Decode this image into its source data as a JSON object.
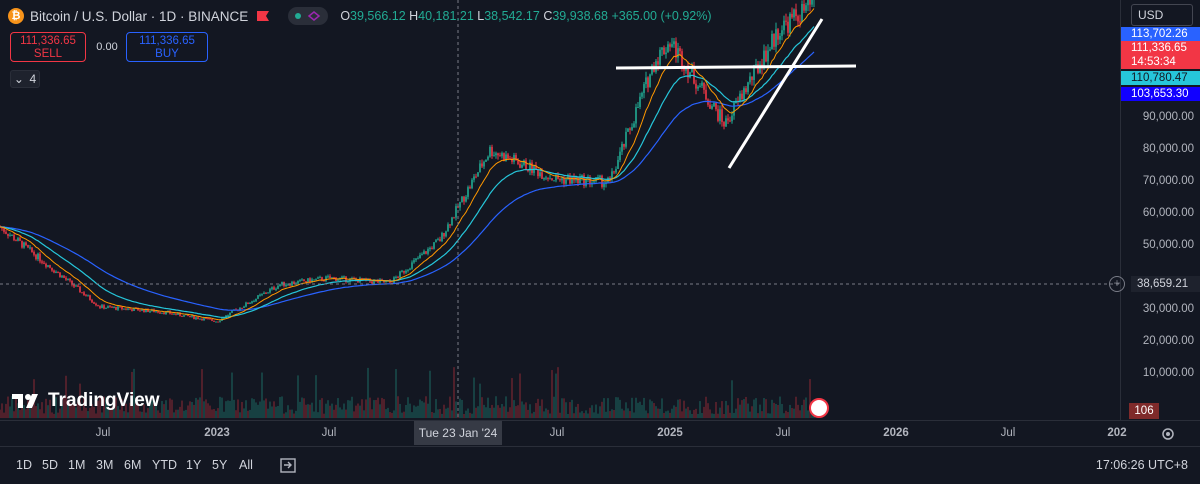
{
  "legend": {
    "title": "Bitcoin / U.S. Dollar · 1D · BINANCE",
    "open_label": "O",
    "open": "39,566.12",
    "high_label": "H",
    "high": "40,181.21",
    "low_label": "L",
    "low": "38,542.17",
    "close_label": "C",
    "close": "39,938.68",
    "change": "+365.00 (+0.92%)"
  },
  "trade": {
    "sell_price": "111,336.65",
    "sell_label": "SELL",
    "spread": "0.00",
    "buy_price": "111,336.65",
    "buy_label": "BUY",
    "indicators_count": "4"
  },
  "currency": "USD",
  "price_scale": {
    "labels": [
      "90,000.00",
      "80,000.00",
      "70,000.00",
      "60,000.00",
      "50,000.00",
      "40,000.00",
      "30,000.00",
      "20,000.00",
      "10,000.00"
    ],
    "tag_top": "113,702.26",
    "tag_last": "111,336.65",
    "tag_countdown": "14:53:34",
    "tag_ema_fast": "110,780.47",
    "tag_ema_slow": "103,653.30",
    "crosshair_price": "38,659.21",
    "volume_value": "106"
  },
  "time_scale": {
    "labels": [
      "Jul",
      "2023",
      "Jul",
      "Jul",
      "2025",
      "Jul",
      "2026",
      "Jul",
      "202"
    ],
    "crosshair_date": "Tue 23 Jan '24"
  },
  "bottom_bar": {
    "ranges": [
      "1D",
      "5D",
      "1M",
      "3M",
      "6M",
      "YTD",
      "1Y",
      "5Y",
      "All"
    ],
    "clock": "17:06:26 UTC+8"
  },
  "brand": "TradingView",
  "colors": {
    "up": "#22ab94",
    "down": "#f23645",
    "ema_slow": "#2962ff",
    "ema_mid": "#26c6da",
    "ema_fast": "#ff9800",
    "background": "#131722"
  },
  "chart_data": {
    "type": "line",
    "x": [
      "2022-04",
      "2022-07",
      "2022-10",
      "2023-01",
      "2023-04",
      "2023-07",
      "2023-10",
      "2024-01",
      "2024-03",
      "2024-06",
      "2024-09",
      "2024-12",
      "2025-01",
      "2025-04",
      "2025-06",
      "2025-08"
    ],
    "series": [
      {
        "values": [
          46000,
          21000,
          19500,
          16500,
          28000,
          30000,
          28500,
          42000,
          70000,
          61000,
          60000,
          98000,
          104000,
          78000,
          108000,
          116000
        ]
      }
    ]
  }
}
